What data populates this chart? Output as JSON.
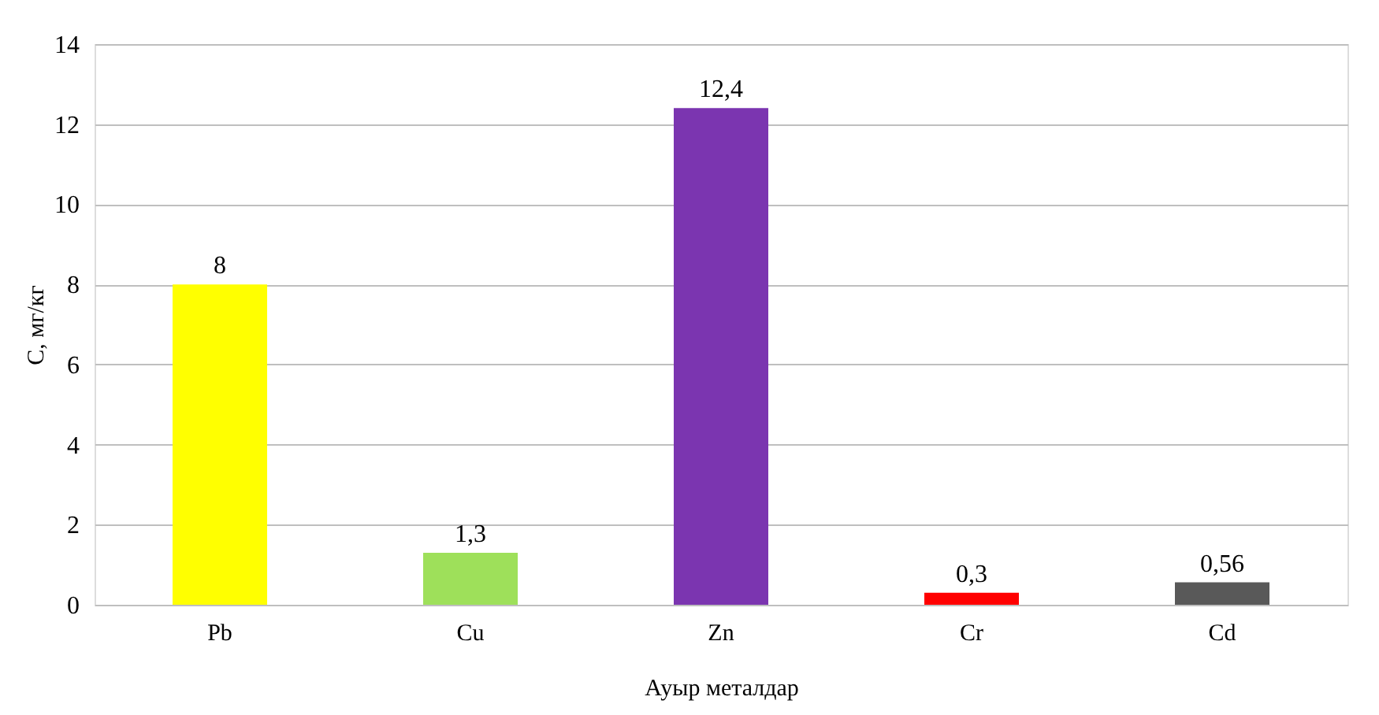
{
  "chart_data": {
    "type": "bar",
    "categories": [
      "Pb",
      "Cu",
      "Zn",
      "Cr",
      "Cd"
    ],
    "values": [
      8,
      1.3,
      12.4,
      0.3,
      0.56
    ],
    "colors": [
      "#ffff00",
      "#9ee05a",
      "#7b35b0",
      "#ff0000",
      "#595959"
    ],
    "value_labels": [
      "8",
      "1,3",
      "12,4",
      "0,3",
      "0,56"
    ],
    "xlabel": "Ауыр металдар",
    "ylabel": "C, мг/кг",
    "ylim": [
      0,
      14
    ],
    "yticks": [
      0,
      2,
      4,
      6,
      8,
      10,
      12,
      14
    ],
    "grid": "y"
  }
}
